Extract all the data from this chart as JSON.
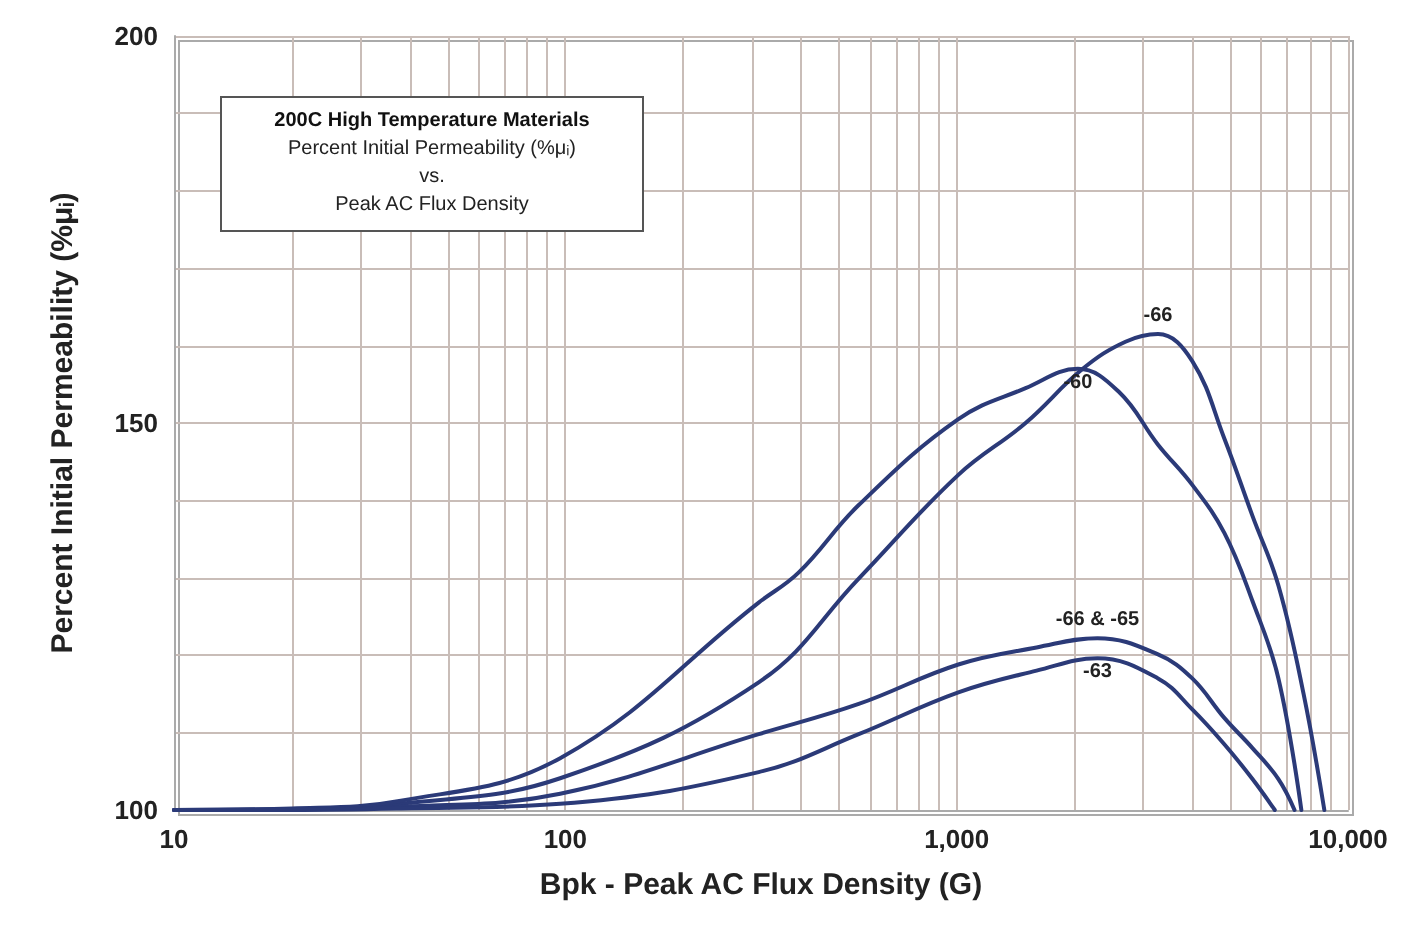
{
  "chart_data": {
    "type": "line",
    "title": "200C High Temperature Materials",
    "subtitle": "Percent Initial Permeability (%μᵢ)\nvs.\nPeak AC Flux Density",
    "xlabel": "Bpk - Peak AC Flux Density (G)",
    "ylabel": "Percent Initial Permeability (%μᵢ)",
    "log": "x",
    "grid": true,
    "legend": false,
    "marker": "none",
    "line_style": "solid",
    "xlim": [
      10,
      10000
    ],
    "ylim": [
      100,
      200
    ],
    "xticks": [
      {
        "value": 10,
        "label": "10"
      },
      {
        "value": 20,
        "label": null
      },
      {
        "value": 30,
        "label": null
      },
      {
        "value": 40,
        "label": null
      },
      {
        "value": 50,
        "label": null
      },
      {
        "value": 60,
        "label": null
      },
      {
        "value": 70,
        "label": null
      },
      {
        "value": 80,
        "label": null
      },
      {
        "value": 90,
        "label": null
      },
      {
        "value": 100,
        "label": "100"
      },
      {
        "value": 200,
        "label": null
      },
      {
        "value": 300,
        "label": null
      },
      {
        "value": 400,
        "label": null
      },
      {
        "value": 500,
        "label": null
      },
      {
        "value": 600,
        "label": null
      },
      {
        "value": 700,
        "label": null
      },
      {
        "value": 800,
        "label": null
      },
      {
        "value": 900,
        "label": null
      },
      {
        "value": 1000,
        "label": "1,000"
      },
      {
        "value": 2000,
        "label": null
      },
      {
        "value": 3000,
        "label": null
      },
      {
        "value": 4000,
        "label": null
      },
      {
        "value": 5000,
        "label": null
      },
      {
        "value": 6000,
        "label": null
      },
      {
        "value": 7000,
        "label": null
      },
      {
        "value": 8000,
        "label": null
      },
      {
        "value": 9000,
        "label": null
      },
      {
        "value": 10000,
        "label": "10,000"
      }
    ],
    "yticks": [
      100,
      {
        "value": 110,
        "label": null
      },
      {
        "value": 120,
        "label": null
      },
      {
        "value": 130,
        "label": null
      },
      {
        "value": 140,
        "label": null
      },
      150,
      {
        "value": 160,
        "label": null
      },
      {
        "value": 170,
        "label": null
      },
      {
        "value": 180,
        "label": null
      },
      {
        "value": 190,
        "label": null
      },
      200
    ],
    "series": [
      {
        "name": "-66",
        "color": "#2b3a78",
        "x": [
          10,
          20,
          38,
          97,
          312,
          562,
          1010,
          1500,
          2100,
          2700,
          3270,
          4000,
          4830,
          5700,
          6640,
          7700,
          8700
        ],
        "values": [
          100,
          100.1,
          100.8,
          104.1,
          116.5,
          129.9,
          143.3,
          150,
          157,
          160.5,
          161.5,
          158,
          148,
          138,
          129,
          115,
          100
        ]
      },
      {
        "name": "-60",
        "color": "#2b3a78",
        "x": [
          10,
          20,
          38,
          97,
          312,
          395,
          562,
          1010,
          1500,
          2040,
          2600,
          3270,
          4000,
          4830,
          5700,
          6640,
          7600
        ],
        "values": [
          100,
          100.2,
          101.2,
          106.7,
          126.8,
          130.7,
          139.4,
          150.5,
          154.5,
          157,
          154,
          147.2,
          142,
          135.8,
          127,
          117,
          100
        ]
      },
      {
        "name": "-66 & -65",
        "color": "#2b3a78",
        "x": [
          10,
          20,
          38,
          97,
          312,
          562,
          1010,
          1600,
          2290,
          3270,
          4000,
          4830,
          5700,
          6640,
          7300
        ],
        "values": [
          100,
          100.1,
          100.4,
          102.1,
          109.8,
          113.7,
          118.8,
          121,
          122.2,
          120.1,
          117,
          111.9,
          108,
          104,
          100
        ]
      },
      {
        "name": "-63",
        "color": "#2b3a78",
        "x": [
          10,
          20,
          38,
          97,
          312,
          562,
          1010,
          1600,
          2290,
          3270,
          4000,
          4830,
          5700,
          6500
        ],
        "values": [
          100,
          100,
          100.2,
          100.8,
          104.9,
          109.8,
          115.2,
          118,
          119.6,
          117,
          113,
          108.5,
          104,
          100
        ]
      }
    ]
  }
}
